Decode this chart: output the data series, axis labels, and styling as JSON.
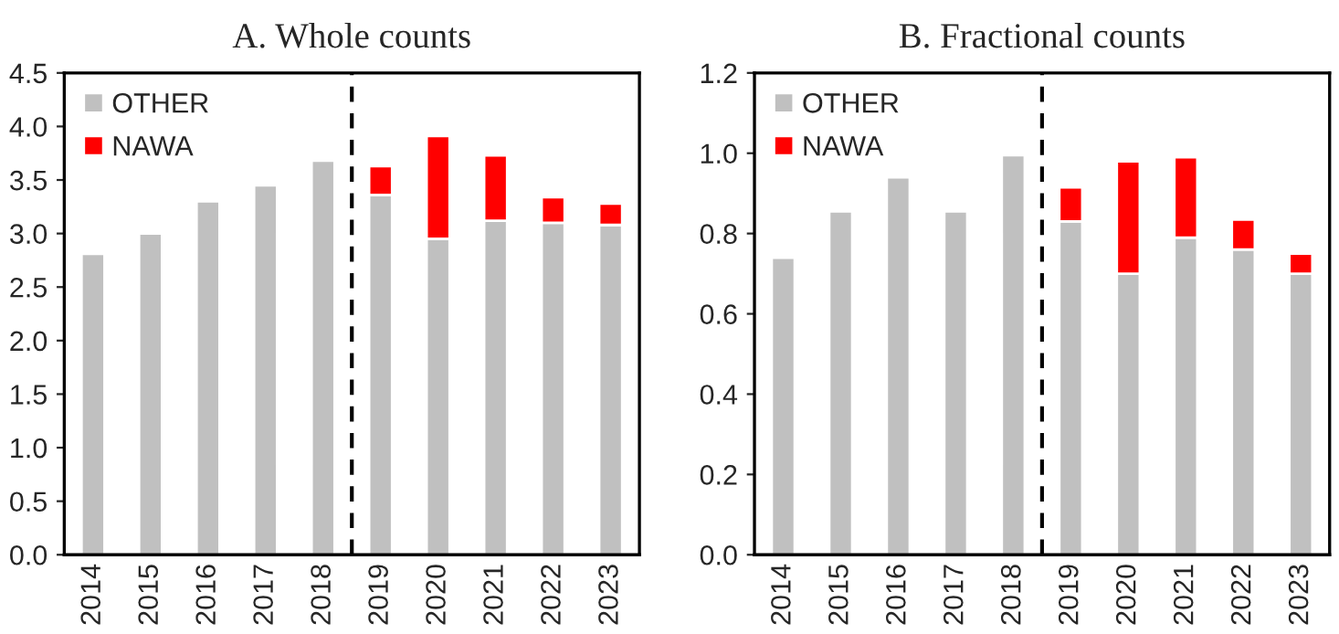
{
  "chart_data": [
    {
      "type": "bar",
      "title": "A. Whole counts",
      "stacked": true,
      "x": [
        2014,
        2015,
        2016,
        2017,
        2018,
        2019,
        2020,
        2021,
        2022,
        2023
      ],
      "xlim": [
        2013.5,
        2023.5
      ],
      "xticks": [
        2014,
        2015,
        2016,
        2017,
        2018,
        2019,
        2020,
        2021,
        2022,
        2023
      ],
      "ylim": [
        0,
        4.5
      ],
      "yticks": [
        {
          "value": 0,
          "label": "0.0"
        },
        {
          "value": 0.5,
          "label": "0.5"
        },
        {
          "value": 1,
          "label": "1.0"
        },
        {
          "value": 1.5,
          "label": "1.5"
        },
        {
          "value": 2,
          "label": "2.0"
        },
        {
          "value": 2.5,
          "label": "2.5"
        },
        {
          "value": 3,
          "label": "3.0"
        },
        {
          "value": 3.5,
          "label": "3.5"
        },
        {
          "value": 4,
          "label": "4.0"
        },
        {
          "value": 4.5,
          "label": "4.5"
        }
      ],
      "grid": false,
      "legend": "top left",
      "series": [
        {
          "name": "OTHER",
          "color": "#c0c0c0",
          "values": [
            2.81,
            3.0,
            3.3,
            3.45,
            3.68,
            3.36,
            2.95,
            3.12,
            3.1,
            3.08
          ]
        },
        {
          "name": "NAWA",
          "color": "#ff0000",
          "values": [
            null,
            null,
            null,
            null,
            null,
            0.27,
            0.96,
            0.61,
            0.24,
            0.2
          ]
        }
      ],
      "ref_lines": [
        {
          "axis": "x",
          "value": 2018.5,
          "color": "#000000",
          "line_style": "dashed"
        }
      ]
    },
    {
      "type": "bar",
      "title": "B. Fractional counts",
      "stacked": true,
      "x": [
        2014,
        2015,
        2016,
        2017,
        2018,
        2019,
        2020,
        2021,
        2022,
        2023
      ],
      "xlim": [
        2013.5,
        2023.5
      ],
      "xticks": [
        2014,
        2015,
        2016,
        2017,
        2018,
        2019,
        2020,
        2021,
        2022,
        2023
      ],
      "ylim": [
        0,
        1.2
      ],
      "yticks": [
        {
          "value": 0,
          "label": "0.0"
        },
        {
          "value": 0.2,
          "label": "0.2"
        },
        {
          "value": 0.4,
          "label": "0.4"
        },
        {
          "value": 0.6,
          "label": "0.6"
        },
        {
          "value": 0.8,
          "label": "0.8"
        },
        {
          "value": 1,
          "label": "1.0"
        },
        {
          "value": 1.2,
          "label": "1.2"
        }
      ],
      "grid": false,
      "legend": "top left",
      "series": [
        {
          "name": "OTHER",
          "color": "#c0c0c0",
          "values": [
            0.74,
            0.855,
            0.94,
            0.855,
            0.995,
            0.83,
            0.7,
            0.79,
            0.76,
            0.7
          ]
        },
        {
          "name": "NAWA",
          "color": "#ff0000",
          "values": [
            null,
            null,
            null,
            null,
            null,
            0.085,
            0.28,
            0.2,
            0.075,
            0.05
          ]
        }
      ],
      "ref_lines": [
        {
          "axis": "x",
          "value": 2018.5,
          "color": "#000000",
          "line_style": "dashed"
        }
      ]
    }
  ]
}
